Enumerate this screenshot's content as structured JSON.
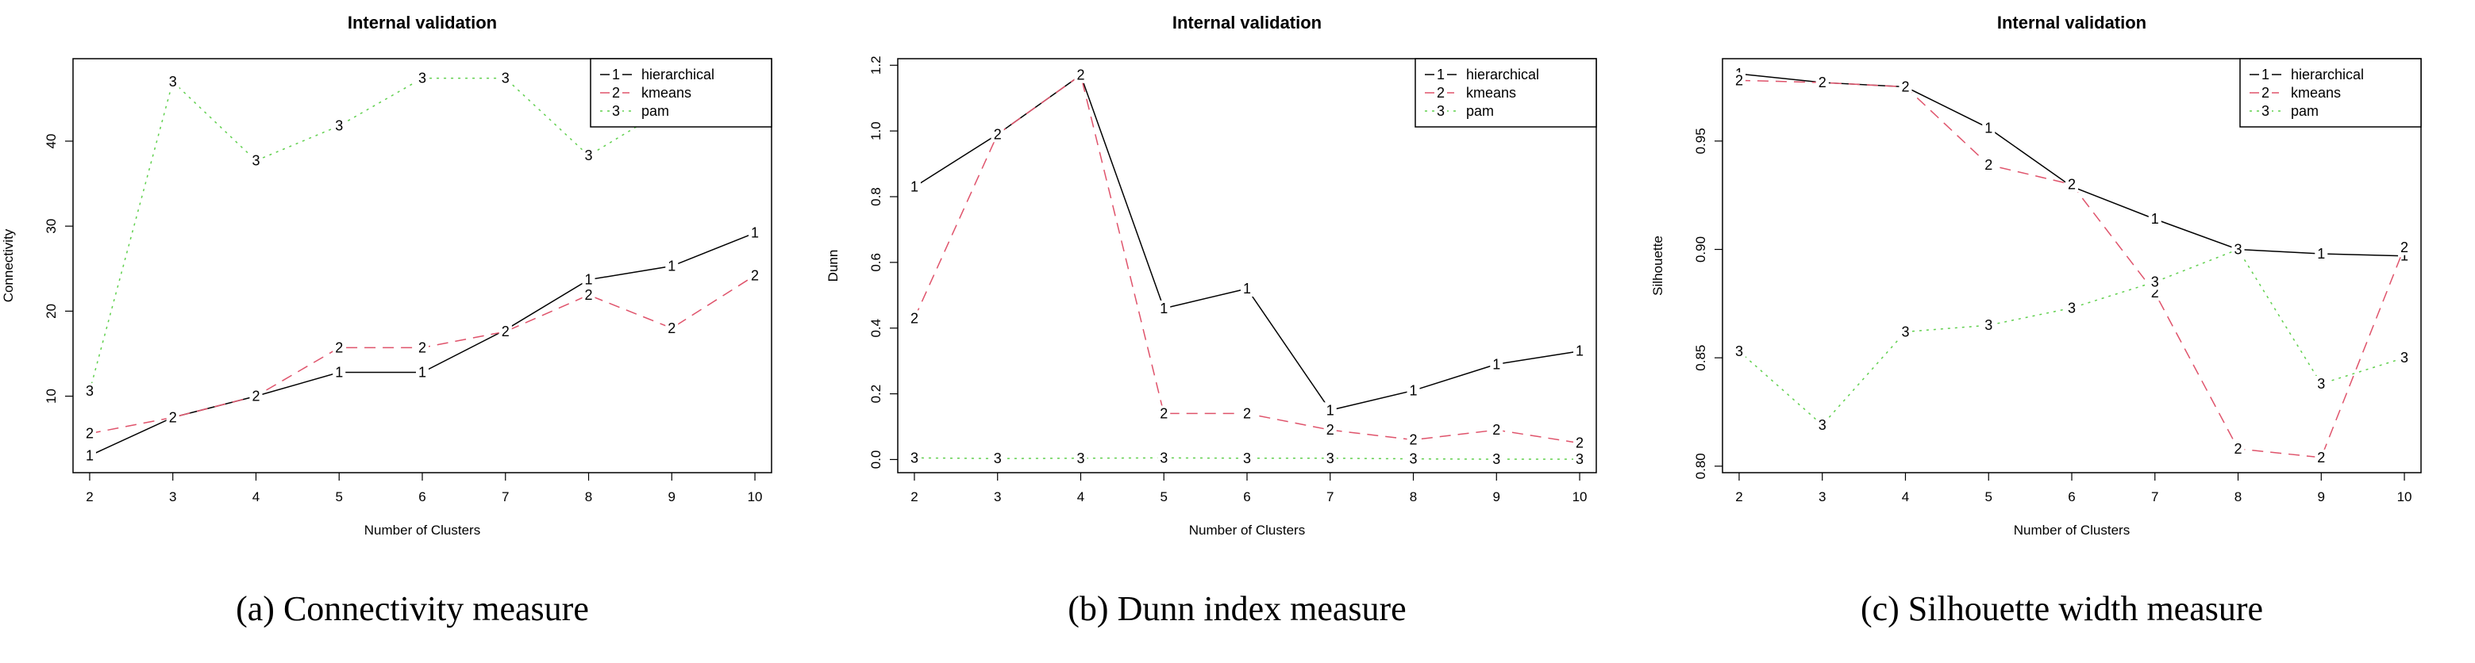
{
  "colors": {
    "hierarchical": "#000000",
    "kmeans": "#DF536B",
    "pam": "#61D04F"
  },
  "chart_data": [
    {
      "type": "line",
      "title": "Internal validation",
      "xlabel": "Number of Clusters",
      "ylabel": "Connectivity",
      "x": [
        2,
        3,
        4,
        5,
        6,
        7,
        8,
        9,
        10
      ],
      "xlim": [
        1.8,
        10.2
      ],
      "ylim": [
        1.0,
        49.7
      ],
      "yticks": [
        10,
        20,
        30,
        40
      ],
      "ytick_labels": [
        "10",
        "20",
        "30",
        "40"
      ],
      "legend_position": "top-right",
      "series": [
        {
          "name": "hierarchical",
          "marker": "1",
          "style": "solid",
          "values": [
            3.0,
            7.5,
            10.0,
            12.8,
            12.8,
            17.8,
            23.7,
            25.3,
            29.2
          ]
        },
        {
          "name": "kmeans",
          "marker": "2",
          "style": "dashed",
          "values": [
            5.6,
            7.5,
            10.0,
            15.7,
            15.7,
            17.6,
            21.9,
            18.0,
            24.2
          ]
        },
        {
          "name": "pam",
          "marker": "3",
          "style": "dotted",
          "values": [
            10.6,
            47.0,
            37.7,
            41.8,
            47.4,
            47.4,
            38.3,
            44.2,
            47.5
          ]
        }
      ],
      "caption": "(a) Connectivity measure"
    },
    {
      "type": "line",
      "title": "Internal validation",
      "xlabel": "Number of Clusters",
      "ylabel": "Dunn",
      "x": [
        2,
        3,
        4,
        5,
        6,
        7,
        8,
        9,
        10
      ],
      "xlim": [
        1.8,
        10.2
      ],
      "ylim": [
        -0.04,
        1.22
      ],
      "yticks": [
        0.0,
        0.2,
        0.4,
        0.6,
        0.8,
        1.0,
        1.2
      ],
      "ytick_labels": [
        "0.0",
        "0.2",
        "0.4",
        "0.6",
        "0.8",
        "1.0",
        "1.2"
      ],
      "legend_position": "top-right",
      "series": [
        {
          "name": "hierarchical",
          "marker": "1",
          "style": "solid",
          "values": [
            0.83,
            0.99,
            1.17,
            0.46,
            0.52,
            0.15,
            0.21,
            0.29,
            0.33
          ]
        },
        {
          "name": "kmeans",
          "marker": "2",
          "style": "dashed",
          "values": [
            0.43,
            0.99,
            1.17,
            0.14,
            0.14,
            0.09,
            0.06,
            0.09,
            0.05
          ]
        },
        {
          "name": "pam",
          "marker": "3",
          "style": "dotted",
          "values": [
            0.005,
            0.003,
            0.004,
            0.005,
            0.004,
            0.004,
            0.002,
            0.001,
            0.001
          ]
        }
      ],
      "caption": "(b) Dunn index measure"
    },
    {
      "type": "line",
      "title": "Internal validation",
      "xlabel": "Number of Clusters",
      "ylabel": "Silhouette",
      "x": [
        2,
        3,
        4,
        5,
        6,
        7,
        8,
        9,
        10
      ],
      "xlim": [
        1.8,
        10.2
      ],
      "ylim": [
        0.797,
        0.988
      ],
      "yticks": [
        0.8,
        0.85,
        0.9,
        0.95
      ],
      "ytick_labels": [
        "0.80",
        "0.85",
        "0.90",
        "0.95"
      ],
      "legend_position": "top-right",
      "series": [
        {
          "name": "hierarchical",
          "marker": "1",
          "style": "solid",
          "values": [
            0.981,
            0.977,
            0.975,
            0.956,
            0.929,
            0.914,
            0.9,
            0.898,
            0.897
          ]
        },
        {
          "name": "kmeans",
          "marker": "2",
          "style": "dashed",
          "values": [
            0.978,
            0.977,
            0.975,
            0.939,
            0.93,
            0.88,
            0.808,
            0.804,
            0.901
          ]
        },
        {
          "name": "pam",
          "marker": "3",
          "style": "dotted",
          "values": [
            0.853,
            0.819,
            0.862,
            0.865,
            0.873,
            0.885,
            0.9,
            0.838,
            0.85
          ]
        }
      ],
      "caption": "(c) Silhouette width measure"
    }
  ]
}
